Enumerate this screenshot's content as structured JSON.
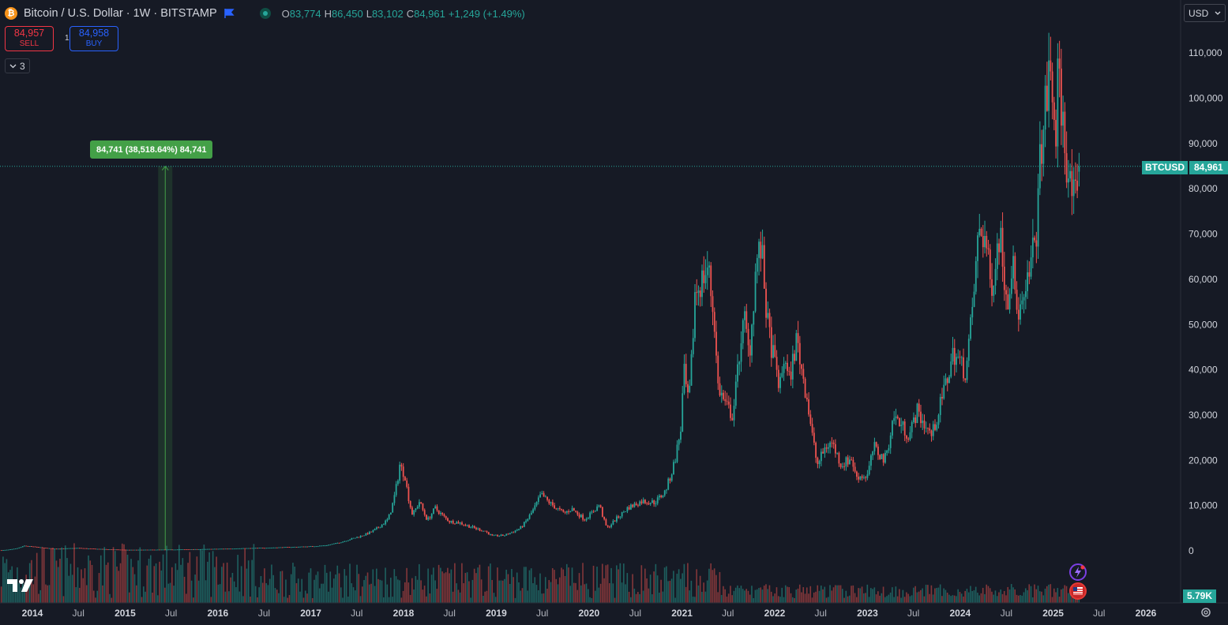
{
  "header": {
    "title": "Bitcoin / U.S. Dollar · 1W · BITSTAMP",
    "coin_icon": "bitcoin-icon",
    "flag_icon": "blue-flag-icon",
    "live_icon": "market-open-dot-icon",
    "ohlc": {
      "o_key": "O",
      "o_val": "83,774",
      "h_key": "H",
      "h_val": "86,450",
      "l_key": "L",
      "l_val": "83,102",
      "c_key": "C",
      "c_val": "84,961",
      "change": "+1,249 (+1.49%)"
    }
  },
  "trade": {
    "sell_value": "84,957",
    "sell_label": "SELL",
    "spread": "1",
    "buy_value": "84,958",
    "buy_label": "BUY"
  },
  "layers_toggle": {
    "count": "3",
    "icon": "chevron-down-icon"
  },
  "currency_select": {
    "value": "USD",
    "icon": "chevron-down-icon"
  },
  "price_axis_label": {
    "symbol": "BTCUSD",
    "value": "84,961"
  },
  "volume_label": "5.79K",
  "measure_tool": {
    "text": "84,741 (38,518.64%) 84,741"
  },
  "colors": {
    "background": "#161a25",
    "up": "#26a69a",
    "down": "#ef5350",
    "measure": "#43a047",
    "sell": "#f23645",
    "buy": "#2962ff"
  },
  "chart_data": {
    "type": "candlestick",
    "symbol": "BTCUSD",
    "interval": "1W",
    "exchange": "BITSTAMP",
    "ylim": [
      0,
      112000
    ],
    "y_ticks": [
      0,
      10000,
      20000,
      30000,
      40000,
      50000,
      60000,
      70000,
      80000,
      90000,
      100000,
      110000
    ],
    "y_tick_labels": [
      "0",
      "10,000",
      "20,000",
      "30,000",
      "40,000",
      "50,000",
      "60,000",
      "70,000",
      "80,000",
      "90,000",
      "100,000",
      "110,000"
    ],
    "x_range": [
      "2013-09-01",
      "2026-07-01"
    ],
    "x_ticks": [
      {
        "date": "2014-01-01",
        "label": "2014"
      },
      {
        "date": "2014-07-01",
        "label": "Jul"
      },
      {
        "date": "2015-01-01",
        "label": "2015"
      },
      {
        "date": "2015-07-01",
        "label": "Jul"
      },
      {
        "date": "2016-01-01",
        "label": "2016"
      },
      {
        "date": "2016-07-01",
        "label": "Jul"
      },
      {
        "date": "2017-01-01",
        "label": "2017"
      },
      {
        "date": "2017-07-01",
        "label": "Jul"
      },
      {
        "date": "2018-01-01",
        "label": "2018"
      },
      {
        "date": "2018-07-01",
        "label": "Jul"
      },
      {
        "date": "2019-01-01",
        "label": "2019"
      },
      {
        "date": "2019-07-01",
        "label": "Jul"
      },
      {
        "date": "2020-01-01",
        "label": "2020"
      },
      {
        "date": "2020-07-01",
        "label": "Jul"
      },
      {
        "date": "2021-01-01",
        "label": "2021"
      },
      {
        "date": "2021-07-01",
        "label": "Jul"
      },
      {
        "date": "2022-01-01",
        "label": "2022"
      },
      {
        "date": "2022-07-01",
        "label": "Jul"
      },
      {
        "date": "2023-01-01",
        "label": "2023"
      },
      {
        "date": "2023-07-01",
        "label": "Jul"
      },
      {
        "date": "2024-01-01",
        "label": "2024"
      },
      {
        "date": "2024-07-01",
        "label": "Jul"
      },
      {
        "date": "2025-01-01",
        "label": "2025"
      },
      {
        "date": "2025-07-01",
        "label": "Jul"
      },
      {
        "date": "2026-01-01",
        "label": "2026"
      }
    ],
    "close_series": [
      [
        "2013-09-01",
        130
      ],
      [
        "2013-11-30",
        1100
      ],
      [
        "2014-01-15",
        850
      ],
      [
        "2014-04-01",
        450
      ],
      [
        "2014-07-01",
        620
      ],
      [
        "2014-10-01",
        380
      ],
      [
        "2015-01-15",
        210
      ],
      [
        "2015-07-01",
        270
      ],
      [
        "2015-11-01",
        360
      ],
      [
        "2016-01-01",
        430
      ],
      [
        "2016-07-01",
        660
      ],
      [
        "2017-01-01",
        970
      ],
      [
        "2017-03-01",
        1200
      ],
      [
        "2017-06-01",
        2500
      ],
      [
        "2017-09-01",
        4300
      ],
      [
        "2017-11-01",
        7000
      ],
      [
        "2017-12-17",
        19000
      ],
      [
        "2018-01-07",
        16500
      ],
      [
        "2018-02-05",
        8000
      ],
      [
        "2018-03-05",
        11000
      ],
      [
        "2018-04-05",
        6800
      ],
      [
        "2018-05-05",
        9500
      ],
      [
        "2018-07-01",
        6500
      ],
      [
        "2018-08-10",
        6200
      ],
      [
        "2018-11-20",
        4300
      ],
      [
        "2018-12-15",
        3300
      ],
      [
        "2019-02-01",
        3400
      ],
      [
        "2019-04-05",
        5000
      ],
      [
        "2019-05-15",
        8000
      ],
      [
        "2019-06-26",
        12500
      ],
      [
        "2019-08-01",
        10500
      ],
      [
        "2019-09-25",
        8300
      ],
      [
        "2019-10-26",
        9300
      ],
      [
        "2019-12-15",
        7000
      ],
      [
        "2020-02-12",
        10300
      ],
      [
        "2020-03-12",
        5000
      ],
      [
        "2020-04-15",
        7000
      ],
      [
        "2020-06-01",
        9500
      ],
      [
        "2020-07-28",
        11000
      ],
      [
        "2020-09-15",
        10700
      ],
      [
        "2020-10-25",
        13000
      ],
      [
        "2020-11-25",
        18000
      ],
      [
        "2020-12-27",
        27000
      ],
      [
        "2021-01-08",
        40000
      ],
      [
        "2021-01-27",
        32000
      ],
      [
        "2021-02-21",
        57000
      ],
      [
        "2021-03-14",
        59000
      ],
      [
        "2021-04-14",
        63000
      ],
      [
        "2021-05-12",
        49000
      ],
      [
        "2021-05-20",
        37000
      ],
      [
        "2021-06-22",
        32000
      ],
      [
        "2021-07-20",
        30000
      ],
      [
        "2021-08-20",
        47000
      ],
      [
        "2021-09-06",
        51000
      ],
      [
        "2021-09-22",
        43000
      ],
      [
        "2021-10-20",
        64000
      ],
      [
        "2021-11-10",
        67000
      ],
      [
        "2021-12-04",
        50000
      ],
      [
        "2022-01-22",
        36000
      ],
      [
        "2022-02-10",
        44000
      ],
      [
        "2022-02-24",
        37000
      ],
      [
        "2022-03-29",
        47000
      ],
      [
        "2022-05-08",
        34000
      ],
      [
        "2022-05-20",
        29000
      ],
      [
        "2022-06-18",
        19000
      ],
      [
        "2022-07-20",
        23000
      ],
      [
        "2022-08-15",
        24000
      ],
      [
        "2022-09-20",
        19000
      ],
      [
        "2022-11-01",
        20500
      ],
      [
        "2022-11-15",
        16500
      ],
      [
        "2022-12-31",
        16500
      ],
      [
        "2023-01-25",
        23000
      ],
      [
        "2023-03-10",
        20000
      ],
      [
        "2023-04-14",
        30000
      ],
      [
        "2023-06-15",
        25500
      ],
      [
        "2023-07-14",
        31000
      ],
      [
        "2023-09-11",
        25500
      ],
      [
        "2023-10-25",
        34500
      ],
      [
        "2023-12-06",
        44000
      ],
      [
        "2024-01-23",
        39500
      ],
      [
        "2024-03-14",
        71000
      ],
      [
        "2024-04-10",
        69000
      ],
      [
        "2024-05-01",
        58000
      ],
      [
        "2024-06-05",
        71000
      ],
      [
        "2024-07-05",
        55000
      ],
      [
        "2024-07-29",
        68000
      ],
      [
        "2024-08-05",
        53000
      ],
      [
        "2024-09-06",
        53500
      ],
      [
        "2024-10-29",
        72000
      ],
      [
        "2024-11-12",
        88000
      ],
      [
        "2024-12-17",
        106000
      ],
      [
        "2025-01-13",
        92000
      ],
      [
        "2025-01-20",
        106000
      ],
      [
        "2025-02-24",
        86000
      ],
      [
        "2025-03-10",
        80000
      ],
      [
        "2025-04-08",
        76000
      ],
      [
        "2025-04-14",
        84961
      ]
    ],
    "last_bar": {
      "open": 83774,
      "high": 86450,
      "low": 83102,
      "close": 84961,
      "change": 1249,
      "change_pct": 1.49
    },
    "current_price": 84961,
    "volume_last": 5790,
    "measurement": {
      "from_date": "2015-06-08",
      "to_date": "2015-06-08",
      "from_price": 220,
      "to_price": 84961,
      "change": 84741,
      "change_pct": 38518.64,
      "bars": 84741
    }
  }
}
